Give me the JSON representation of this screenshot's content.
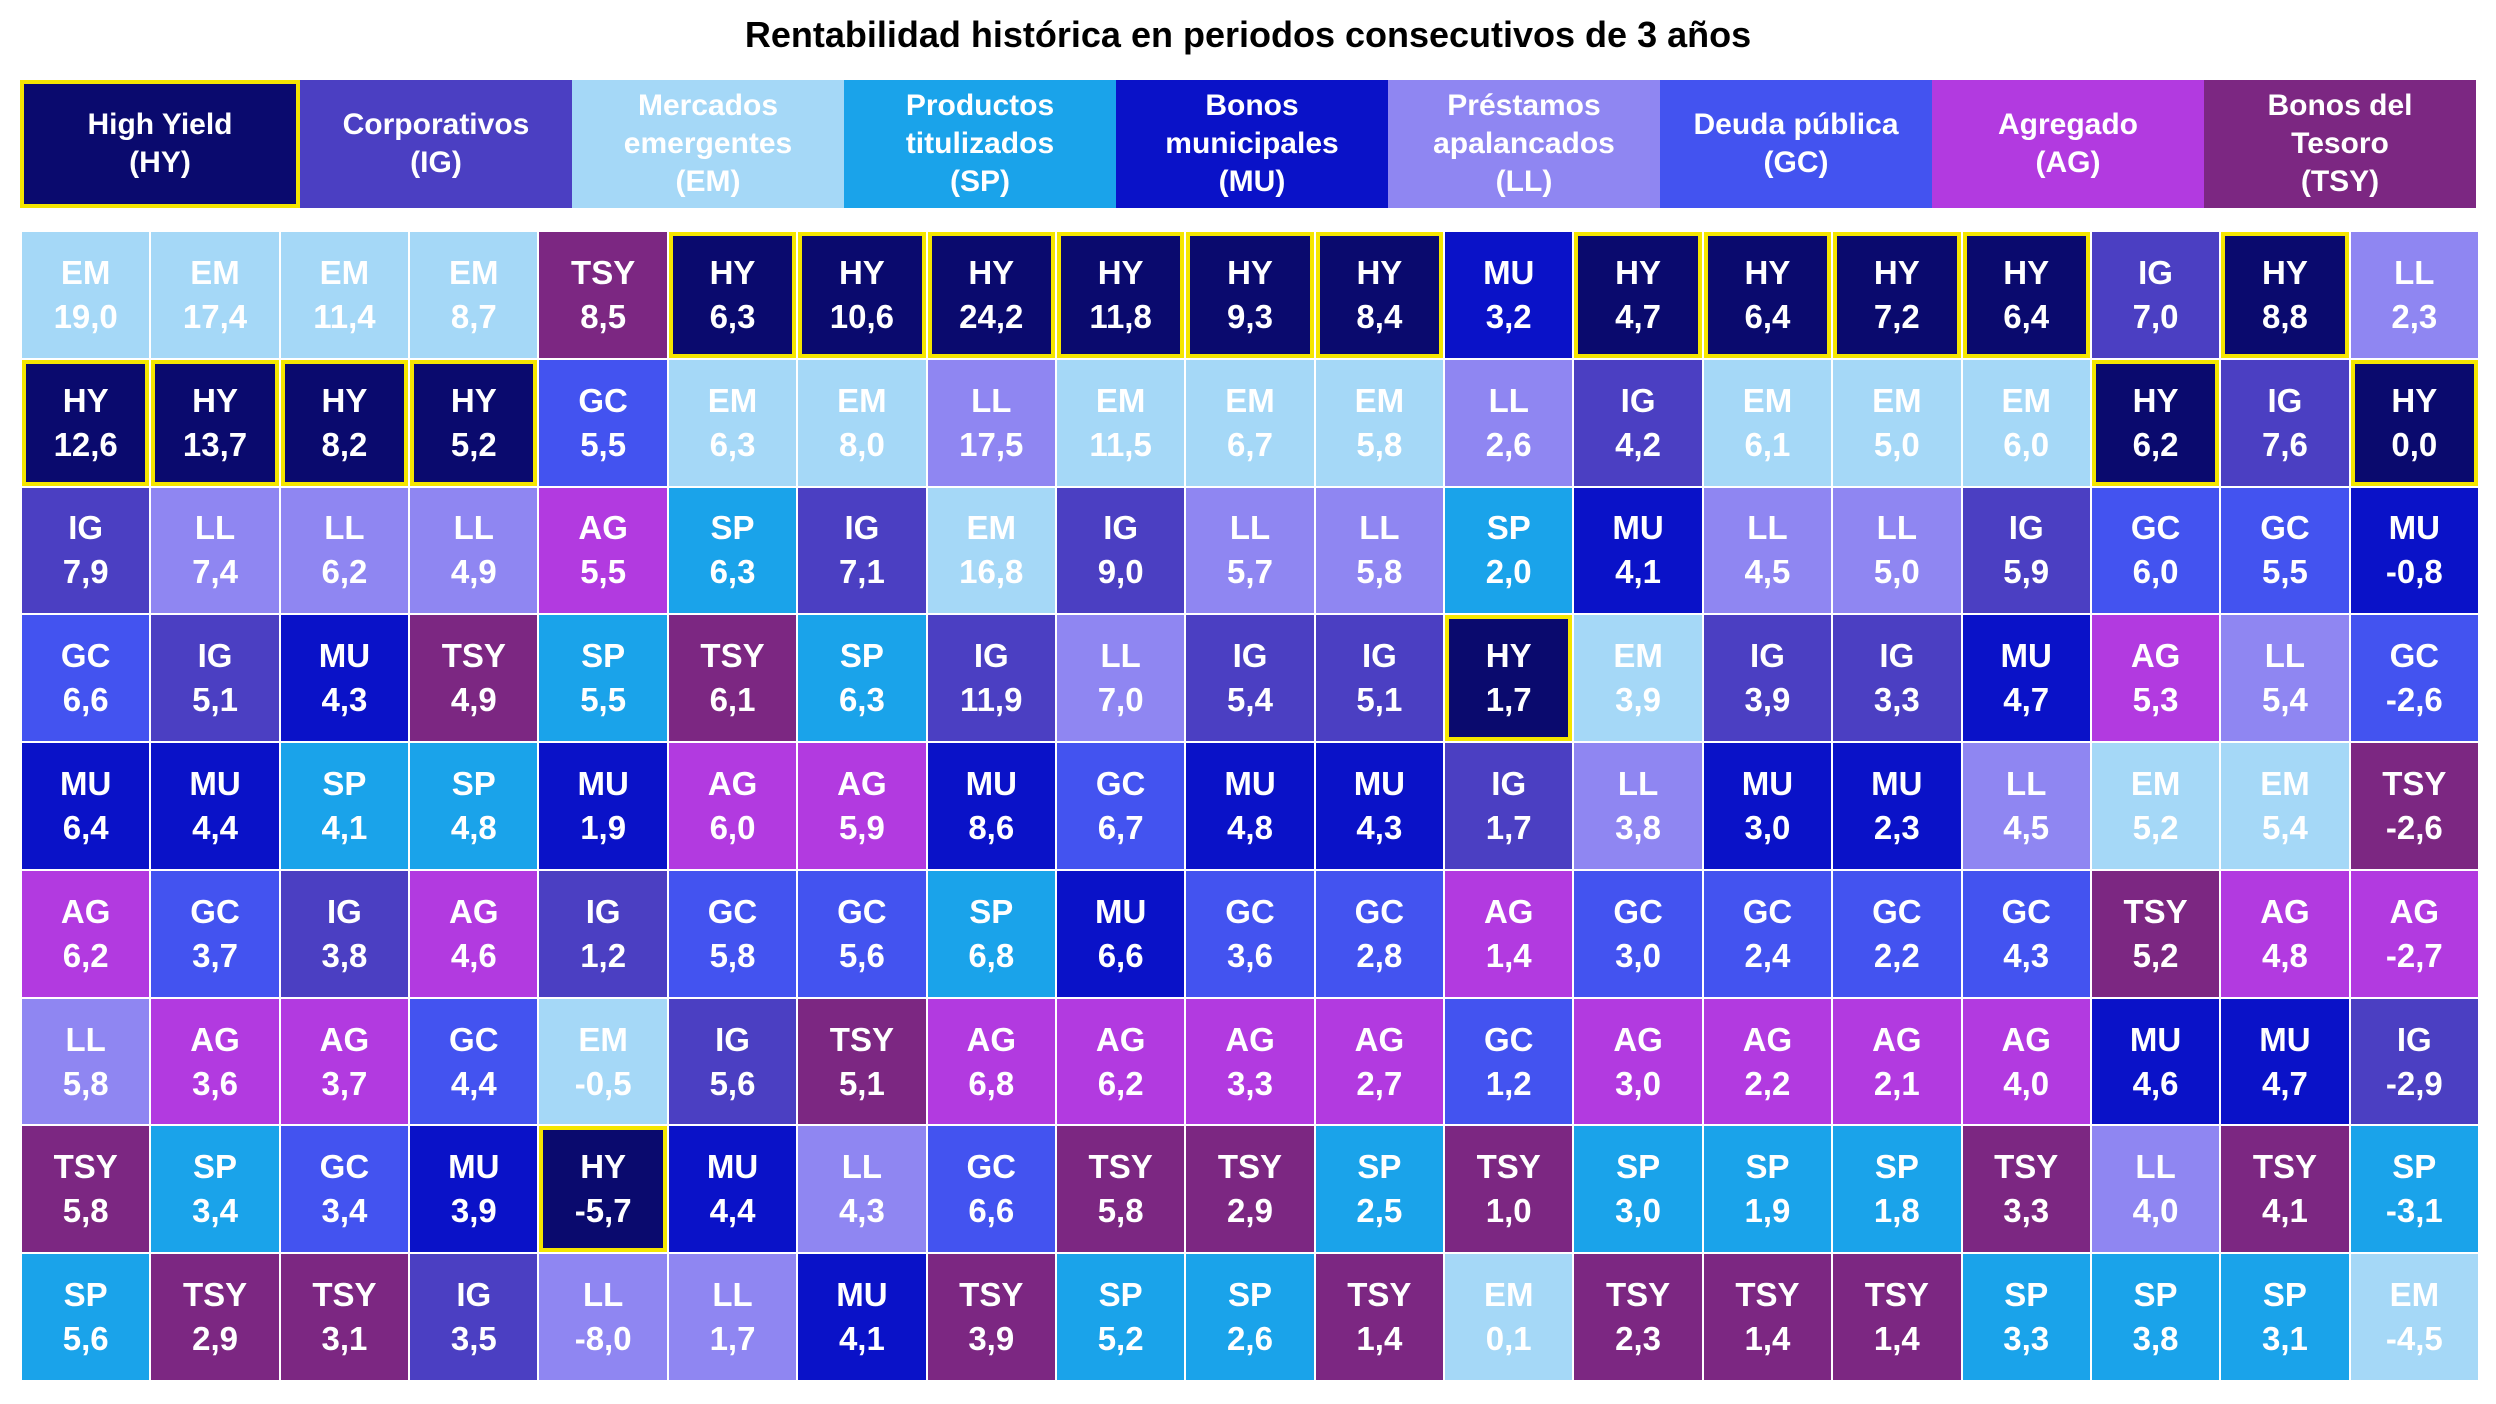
{
  "title": "Rentabilidad histórica en periodos consecutivos de 3 años",
  "colors": {
    "HY": "#0a0a6e",
    "IG": "#4b3fc2",
    "EM": "#a5d8f7",
    "SP": "#1aa3ea",
    "MU": "#0a12c8",
    "LL": "#8f86f2",
    "GC": "#4353f0",
    "AG": "#b23ae0",
    "TSY": "#7c2782",
    "highlight": "#f5e600"
  },
  "legend": [
    {
      "code": "HY",
      "label": "High Yield\n(HY)"
    },
    {
      "code": "IG",
      "label": "Corporativos\n(IG)"
    },
    {
      "code": "EM",
      "label": "Mercados\nemergentes\n(EM)"
    },
    {
      "code": "SP",
      "label": "Productos\ntitulizados\n(SP)"
    },
    {
      "code": "MU",
      "label": "Bonos\nmunicipales\n(MU)"
    },
    {
      "code": "LL",
      "label": "Préstamos\napalancados\n(LL)"
    },
    {
      "code": "GC",
      "label": "Deuda pública\n(GC)"
    },
    {
      "code": "AG",
      "label": "Agregado\n(AG)"
    },
    {
      "code": "TSY",
      "label": "Bonos del\nTesoro\n(TSY)"
    }
  ],
  "chart_data": {
    "type": "table",
    "title": "Rentabilidad histórica en periodos consecutivos de 3 años",
    "columns": [
      {
        "cells": [
          {
            "code": "EM",
            "value": "19,0"
          },
          {
            "code": "HY",
            "value": "12,6"
          },
          {
            "code": "IG",
            "value": "7,9"
          },
          {
            "code": "GC",
            "value": "6,6"
          },
          {
            "code": "MU",
            "value": "6,4"
          },
          {
            "code": "AG",
            "value": "6,2"
          },
          {
            "code": "LL",
            "value": "5,8"
          },
          {
            "code": "TSY",
            "value": "5,8"
          },
          {
            "code": "SP",
            "value": "5,6"
          }
        ]
      },
      {
        "cells": [
          {
            "code": "EM",
            "value": "17,4"
          },
          {
            "code": "HY",
            "value": "13,7"
          },
          {
            "code": "LL",
            "value": "7,4"
          },
          {
            "code": "IG",
            "value": "5,1"
          },
          {
            "code": "MU",
            "value": "4,4"
          },
          {
            "code": "GC",
            "value": "3,7"
          },
          {
            "code": "AG",
            "value": "3,6"
          },
          {
            "code": "SP",
            "value": "3,4"
          },
          {
            "code": "TSY",
            "value": "2,9"
          }
        ]
      },
      {
        "cells": [
          {
            "code": "EM",
            "value": "11,4"
          },
          {
            "code": "HY",
            "value": "8,2"
          },
          {
            "code": "LL",
            "value": "6,2"
          },
          {
            "code": "MU",
            "value": "4,3"
          },
          {
            "code": "SP",
            "value": "4,1"
          },
          {
            "code": "IG",
            "value": "3,8"
          },
          {
            "code": "AG",
            "value": "3,7"
          },
          {
            "code": "GC",
            "value": "3,4"
          },
          {
            "code": "TSY",
            "value": "3,1"
          }
        ]
      },
      {
        "cells": [
          {
            "code": "EM",
            "value": "8,7"
          },
          {
            "code": "HY",
            "value": "5,2"
          },
          {
            "code": "LL",
            "value": "4,9"
          },
          {
            "code": "TSY",
            "value": "4,9"
          },
          {
            "code": "SP",
            "value": "4,8"
          },
          {
            "code": "AG",
            "value": "4,6"
          },
          {
            "code": "GC",
            "value": "4,4"
          },
          {
            "code": "MU",
            "value": "3,9"
          },
          {
            "code": "IG",
            "value": "3,5"
          }
        ]
      },
      {
        "cells": [
          {
            "code": "TSY",
            "value": "8,5"
          },
          {
            "code": "GC",
            "value": "5,5"
          },
          {
            "code": "AG",
            "value": "5,5"
          },
          {
            "code": "SP",
            "value": "5,5"
          },
          {
            "code": "MU",
            "value": "1,9"
          },
          {
            "code": "IG",
            "value": "1,2"
          },
          {
            "code": "EM",
            "value": "-0,5"
          },
          {
            "code": "HY",
            "value": "-5,7"
          },
          {
            "code": "LL",
            "value": "-8,0"
          }
        ]
      },
      {
        "cells": [
          {
            "code": "HY",
            "value": "6,3"
          },
          {
            "code": "EM",
            "value": "6,3"
          },
          {
            "code": "SP",
            "value": "6,3"
          },
          {
            "code": "TSY",
            "value": "6,1"
          },
          {
            "code": "AG",
            "value": "6,0"
          },
          {
            "code": "GC",
            "value": "5,8"
          },
          {
            "code": "IG",
            "value": "5,6"
          },
          {
            "code": "MU",
            "value": "4,4"
          },
          {
            "code": "LL",
            "value": "1,7"
          }
        ]
      },
      {
        "cells": [
          {
            "code": "HY",
            "value": "10,6"
          },
          {
            "code": "EM",
            "value": "8,0"
          },
          {
            "code": "IG",
            "value": "7,1"
          },
          {
            "code": "SP",
            "value": "6,3"
          },
          {
            "code": "AG",
            "value": "5,9"
          },
          {
            "code": "GC",
            "value": "5,6"
          },
          {
            "code": "TSY",
            "value": "5,1"
          },
          {
            "code": "LL",
            "value": "4,3"
          },
          {
            "code": "MU",
            "value": "4,1"
          }
        ]
      },
      {
        "cells": [
          {
            "code": "HY",
            "value": "24,2"
          },
          {
            "code": "LL",
            "value": "17,5"
          },
          {
            "code": "EM",
            "value": "16,8"
          },
          {
            "code": "IG",
            "value": "11,9"
          },
          {
            "code": "MU",
            "value": "8,6"
          },
          {
            "code": "SP",
            "value": "6,8"
          },
          {
            "code": "AG",
            "value": "6,8"
          },
          {
            "code": "GC",
            "value": "6,6"
          },
          {
            "code": "TSY",
            "value": "3,9"
          }
        ]
      },
      {
        "cells": [
          {
            "code": "HY",
            "value": "11,8"
          },
          {
            "code": "EM",
            "value": "11,5"
          },
          {
            "code": "IG",
            "value": "9,0"
          },
          {
            "code": "LL",
            "value": "7,0"
          },
          {
            "code": "GC",
            "value": "6,7"
          },
          {
            "code": "MU",
            "value": "6,6"
          },
          {
            "code": "AG",
            "value": "6,2"
          },
          {
            "code": "TSY",
            "value": "5,8"
          },
          {
            "code": "SP",
            "value": "5,2"
          }
        ]
      },
      {
        "cells": [
          {
            "code": "HY",
            "value": "9,3"
          },
          {
            "code": "EM",
            "value": "6,7"
          },
          {
            "code": "LL",
            "value": "5,7"
          },
          {
            "code": "IG",
            "value": "5,4"
          },
          {
            "code": "MU",
            "value": "4,8"
          },
          {
            "code": "GC",
            "value": "3,6"
          },
          {
            "code": "AG",
            "value": "3,3"
          },
          {
            "code": "TSY",
            "value": "2,9"
          },
          {
            "code": "SP",
            "value": "2,6"
          }
        ]
      },
      {
        "cells": [
          {
            "code": "HY",
            "value": "8,4"
          },
          {
            "code": "EM",
            "value": "5,8"
          },
          {
            "code": "LL",
            "value": "5,8"
          },
          {
            "code": "IG",
            "value": "5,1"
          },
          {
            "code": "MU",
            "value": "4,3"
          },
          {
            "code": "GC",
            "value": "2,8"
          },
          {
            "code": "AG",
            "value": "2,7"
          },
          {
            "code": "SP",
            "value": "2,5"
          },
          {
            "code": "TSY",
            "value": "1,4"
          }
        ]
      },
      {
        "cells": [
          {
            "code": "MU",
            "value": "3,2"
          },
          {
            "code": "LL",
            "value": "2,6"
          },
          {
            "code": "SP",
            "value": "2,0"
          },
          {
            "code": "HY",
            "value": "1,7"
          },
          {
            "code": "IG",
            "value": "1,7"
          },
          {
            "code": "AG",
            "value": "1,4"
          },
          {
            "code": "GC",
            "value": "1,2"
          },
          {
            "code": "TSY",
            "value": "1,0"
          },
          {
            "code": "EM",
            "value": "0,1"
          }
        ]
      },
      {
        "cells": [
          {
            "code": "HY",
            "value": "4,7"
          },
          {
            "code": "IG",
            "value": "4,2"
          },
          {
            "code": "MU",
            "value": "4,1"
          },
          {
            "code": "EM",
            "value": "3,9"
          },
          {
            "code": "LL",
            "value": "3,8"
          },
          {
            "code": "GC",
            "value": "3,0"
          },
          {
            "code": "AG",
            "value": "3,0"
          },
          {
            "code": "SP",
            "value": "3,0"
          },
          {
            "code": "TSY",
            "value": "2,3"
          }
        ]
      },
      {
        "cells": [
          {
            "code": "HY",
            "value": "6,4"
          },
          {
            "code": "EM",
            "value": "6,1"
          },
          {
            "code": "LL",
            "value": "4,5"
          },
          {
            "code": "IG",
            "value": "3,9"
          },
          {
            "code": "MU",
            "value": "3,0"
          },
          {
            "code": "GC",
            "value": "2,4"
          },
          {
            "code": "AG",
            "value": "2,2"
          },
          {
            "code": "SP",
            "value": "1,9"
          },
          {
            "code": "TSY",
            "value": "1,4"
          }
        ]
      },
      {
        "cells": [
          {
            "code": "HY",
            "value": "7,2"
          },
          {
            "code": "EM",
            "value": "5,0"
          },
          {
            "code": "LL",
            "value": "5,0"
          },
          {
            "code": "IG",
            "value": "3,3"
          },
          {
            "code": "MU",
            "value": "2,3"
          },
          {
            "code": "GC",
            "value": "2,2"
          },
          {
            "code": "AG",
            "value": "2,1"
          },
          {
            "code": "SP",
            "value": "1,8"
          },
          {
            "code": "TSY",
            "value": "1,4"
          }
        ]
      },
      {
        "cells": [
          {
            "code": "HY",
            "value": "6,4"
          },
          {
            "code": "EM",
            "value": "6,0"
          },
          {
            "code": "IG",
            "value": "5,9"
          },
          {
            "code": "MU",
            "value": "4,7"
          },
          {
            "code": "LL",
            "value": "4,5"
          },
          {
            "code": "GC",
            "value": "4,3"
          },
          {
            "code": "AG",
            "value": "4,0"
          },
          {
            "code": "TSY",
            "value": "3,3"
          },
          {
            "code": "SP",
            "value": "3,3"
          }
        ]
      },
      {
        "cells": [
          {
            "code": "IG",
            "value": "7,0"
          },
          {
            "code": "HY",
            "value": "6,2"
          },
          {
            "code": "GC",
            "value": "6,0"
          },
          {
            "code": "AG",
            "value": "5,3"
          },
          {
            "code": "EM",
            "value": "5,2"
          },
          {
            "code": "TSY",
            "value": "5,2"
          },
          {
            "code": "MU",
            "value": "4,6"
          },
          {
            "code": "LL",
            "value": "4,0"
          },
          {
            "code": "SP",
            "value": "3,8"
          }
        ]
      },
      {
        "cells": [
          {
            "code": "HY",
            "value": "8,8"
          },
          {
            "code": "IG",
            "value": "7,6"
          },
          {
            "code": "GC",
            "value": "5,5"
          },
          {
            "code": "LL",
            "value": "5,4"
          },
          {
            "code": "EM",
            "value": "5,4"
          },
          {
            "code": "AG",
            "value": "4,8"
          },
          {
            "code": "MU",
            "value": "4,7"
          },
          {
            "code": "TSY",
            "value": "4,1"
          },
          {
            "code": "SP",
            "value": "3,1"
          }
        ]
      },
      {
        "cells": [
          {
            "code": "LL",
            "value": "2,3"
          },
          {
            "code": "HY",
            "value": "0,0"
          },
          {
            "code": "MU",
            "value": "-0,8"
          },
          {
            "code": "GC",
            "value": "-2,6"
          },
          {
            "code": "TSY",
            "value": "-2,6"
          },
          {
            "code": "AG",
            "value": "-2,7"
          },
          {
            "code": "IG",
            "value": "-2,9"
          },
          {
            "code": "SP",
            "value": "-3,1"
          },
          {
            "code": "EM",
            "value": "-4,5"
          }
        ]
      }
    ]
  }
}
